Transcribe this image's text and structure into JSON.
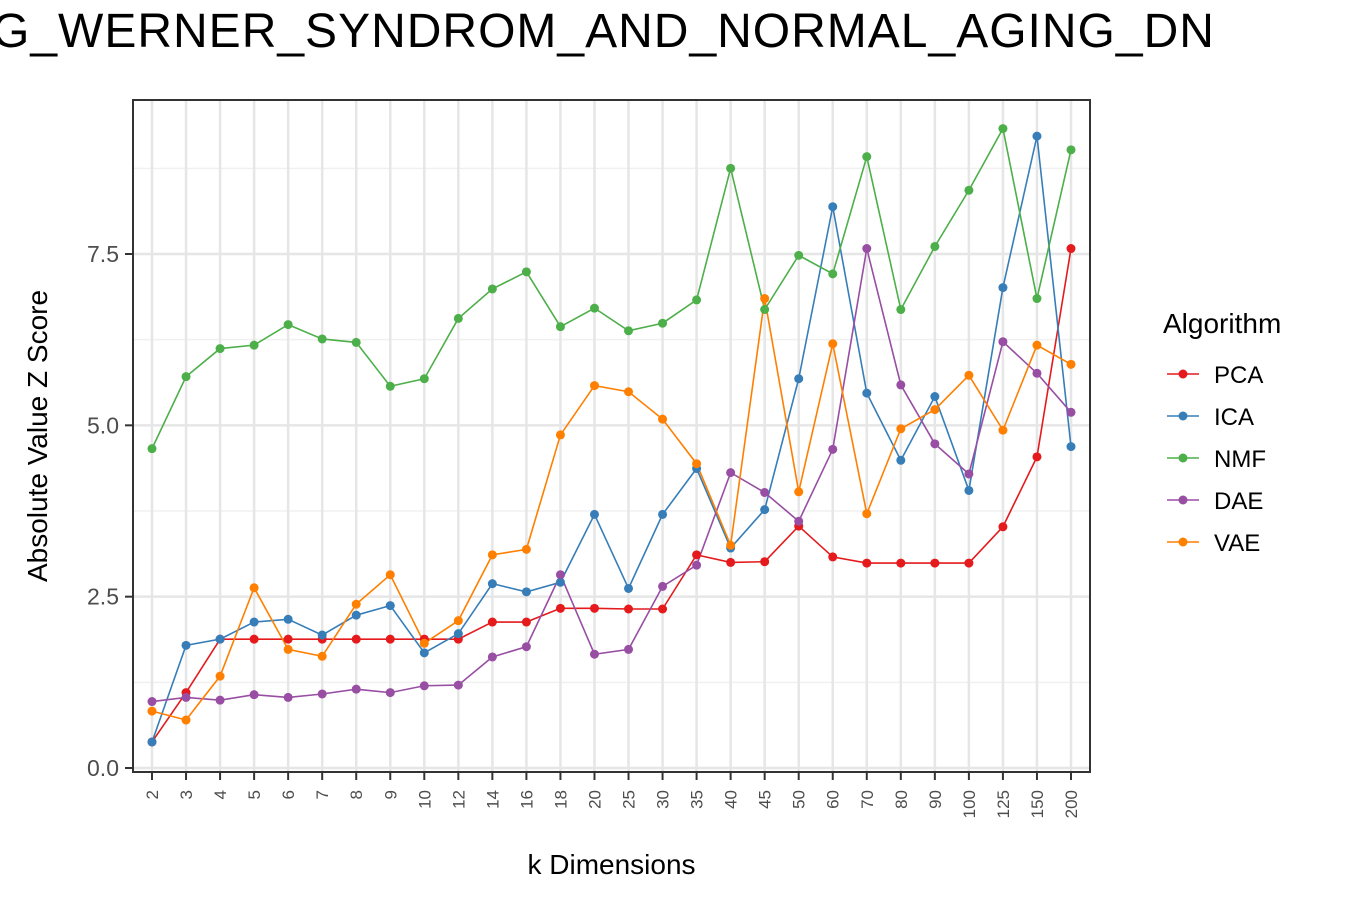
{
  "chart_data": {
    "type": "line",
    "title": "G_WERNER_SYNDROM_AND_NORMAL_AGING_DN",
    "xlabel": "k Dimensions",
    "ylabel": "Absolute Value Z Score",
    "legend_title": "Algorithm",
    "legend_position": "right",
    "grid": true,
    "ylim": [
      0,
      9.75
    ],
    "yticks": [
      0.0,
      2.5,
      5.0,
      7.5
    ],
    "ytick_labels": [
      "0.0",
      "2.5",
      "5.0",
      "7.5"
    ],
    "categories": [
      "2",
      "3",
      "4",
      "5",
      "6",
      "7",
      "8",
      "9",
      "10",
      "12",
      "14",
      "16",
      "18",
      "20",
      "25",
      "30",
      "35",
      "40",
      "45",
      "50",
      "60",
      "70",
      "80",
      "90",
      "100",
      "125",
      "150",
      "200"
    ],
    "series": [
      {
        "name": "PCA",
        "color": "#E41A1C",
        "values": [
          0.38,
          1.1,
          1.88,
          1.88,
          1.88,
          1.88,
          1.88,
          1.88,
          1.88,
          1.88,
          2.13,
          2.13,
          2.33,
          2.33,
          2.32,
          2.32,
          3.11,
          3.0,
          3.01,
          3.53,
          3.08,
          2.99,
          2.99,
          2.99,
          2.99,
          3.52,
          4.54,
          7.58
        ]
      },
      {
        "name": "ICA",
        "color": "#377EB8",
        "values": [
          0.38,
          1.79,
          1.88,
          2.13,
          2.17,
          1.94,
          2.23,
          2.37,
          1.68,
          1.96,
          2.69,
          2.57,
          2.71,
          3.7,
          2.62,
          3.7,
          4.37,
          3.21,
          3.77,
          5.68,
          8.19,
          5.47,
          4.49,
          5.42,
          4.05,
          7.01,
          9.22,
          4.69
        ]
      },
      {
        "name": "NMF",
        "color": "#4DAF4A",
        "values": [
          4.66,
          5.71,
          6.12,
          6.17,
          6.47,
          6.26,
          6.21,
          5.57,
          5.68,
          6.56,
          6.99,
          7.24,
          6.44,
          6.71,
          6.38,
          6.49,
          6.83,
          8.75,
          6.69,
          7.48,
          7.21,
          8.92,
          6.69,
          7.61,
          8.43,
          9.33,
          6.85,
          9.02
        ]
      },
      {
        "name": "DAE",
        "color": "#984EA3",
        "values": [
          0.97,
          1.03,
          0.99,
          1.07,
          1.03,
          1.08,
          1.15,
          1.1,
          1.2,
          1.21,
          1.62,
          1.77,
          2.82,
          1.66,
          1.73,
          2.65,
          2.96,
          4.31,
          4.02,
          3.6,
          4.65,
          7.58,
          5.59,
          4.73,
          4.29,
          6.22,
          5.76,
          5.19
        ]
      },
      {
        "name": "VAE",
        "color": "#FF7F00",
        "values": [
          0.83,
          0.7,
          1.34,
          2.63,
          1.73,
          1.63,
          2.39,
          2.82,
          1.82,
          2.15,
          3.11,
          3.19,
          4.86,
          5.58,
          5.49,
          5.09,
          4.44,
          3.25,
          6.85,
          4.03,
          6.19,
          3.71,
          4.95,
          5.23,
          5.73,
          4.93,
          6.17,
          5.89
        ]
      }
    ]
  }
}
